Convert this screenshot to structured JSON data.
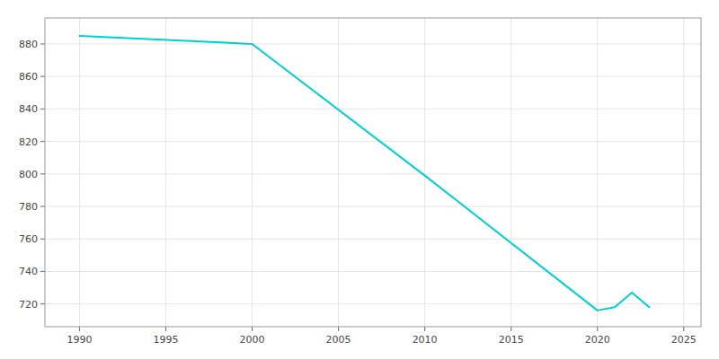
{
  "chart_data": {
    "type": "line",
    "x": [
      1990,
      2000,
      2010,
      2020,
      2021,
      2022,
      2023
    ],
    "values": [
      885,
      880,
      799,
      716,
      718,
      727,
      718
    ],
    "color": "#00CED1",
    "xlim": [
      1988,
      2026
    ],
    "ylim": [
      706,
      896
    ],
    "xticks": [
      1990,
      1995,
      2000,
      2005,
      2010,
      2015,
      2020,
      2025
    ],
    "yticks": [
      720,
      740,
      760,
      780,
      800,
      820,
      840,
      860,
      880
    ],
    "grid": true
  }
}
